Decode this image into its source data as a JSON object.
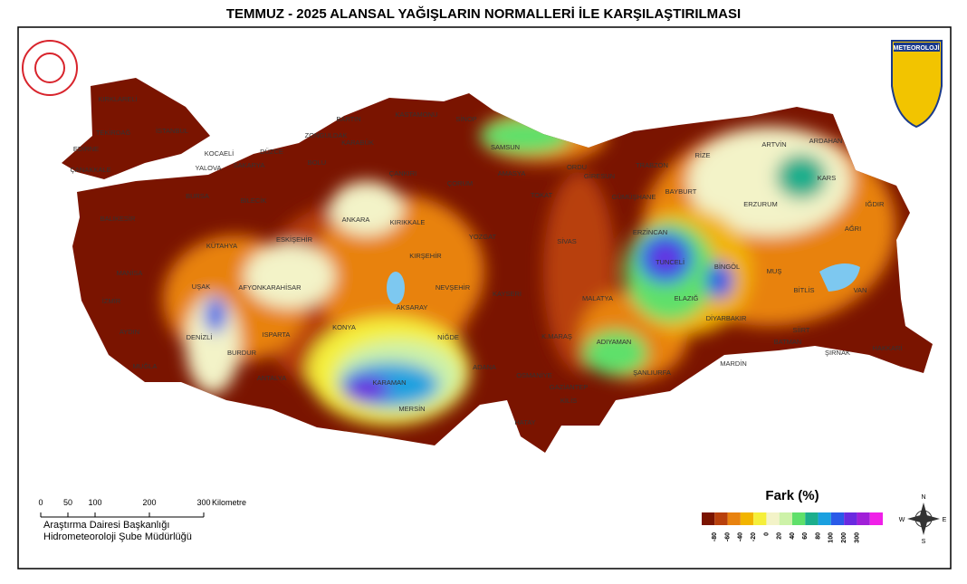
{
  "title": "TEMMUZ - 2025 ALANSAL YAĞIŞLARIN NORMALLERİ İLE KARŞILAŞTIRILMASI",
  "logo_text": "METEOROLOJİ",
  "cities": [
    "KIRKLARELİ",
    "EDİRNE",
    "TEKİRDAĞ",
    "İSTANBUL",
    "KOCAELİ",
    "SAKARYA",
    "DÜZCE",
    "ZONGULDAK",
    "BARTIN",
    "KARABÜK",
    "KASTAMONU",
    "SİNOP",
    "SAMSUN",
    "ORDU",
    "GİRESUN",
    "TRABZON",
    "RİZE",
    "ARTVİN",
    "ARDAHAN",
    "ÇANAKKALE",
    "YALOVA",
    "BURSA",
    "BİLECİK",
    "BOLU",
    "ÇANKIRI",
    "ÇORUM",
    "AMASYA",
    "TOKAT",
    "GÜMÜŞHANE",
    "BAYBURT",
    "KARS",
    "ERZURUM",
    "IĞDIR",
    "AĞRI",
    "ERZİNCAN",
    "ANKARA",
    "KIRIKKALE",
    "BALIKESİR",
    "KÜTAHYA",
    "ESKİŞEHİR",
    "YOZGAT",
    "SİVAS",
    "KIRŞEHİR",
    "TUNCELİ",
    "BİNGÖL",
    "MUŞ",
    "BİTLİS",
    "VAN",
    "MANİSA",
    "UŞAK",
    "AFYONKARAHİSAR",
    "NEVŞEHİR",
    "KAYSERİ",
    "MALATYA",
    "ELAZIĞ",
    "AKSARAY",
    "DİYARBAKIR",
    "BATMAN",
    "SİİRT",
    "HAKKARİ",
    "İZMİR",
    "DENİZLİ",
    "ISPARTA",
    "KONYA",
    "NİĞDE",
    "ADIYAMAN",
    "K.MARAŞ",
    "AYDIN",
    "MUĞLA",
    "BURDUR",
    "ŞANLIURFA",
    "MARDİN",
    "ŞIRNAK",
    "ANTALYA",
    "KARAMAN",
    "OSMANİYE",
    "ADANA",
    "GAZİANTEP",
    "KİLİS",
    "MERSİN",
    "HATAY"
  ],
  "legend": {
    "title": "Fark (%)",
    "ticks": [
      -80,
      -60,
      -40,
      -20,
      0,
      20,
      40,
      60,
      80,
      100,
      200,
      300
    ],
    "colors": [
      "#7a1400",
      "#b8400c",
      "#e8820f",
      "#f2b400",
      "#f5ef3a",
      "#f3f3c8",
      "#cdf2a8",
      "#5fe06a",
      "#1cae8c",
      "#1aa0e0",
      "#2a5ae8",
      "#6a2ae0",
      "#a020d8",
      "#f020e8"
    ]
  },
  "scale": {
    "ticks": [
      0,
      50,
      100,
      200,
      300
    ],
    "unit": "Kilometre"
  },
  "credits": [
    "Araştırma Dairesi Başkanlığı",
    "Hidrometeoroloji Şube Müdürlüğü"
  ],
  "compass": [
    "N",
    "E",
    "S",
    "W"
  ]
}
